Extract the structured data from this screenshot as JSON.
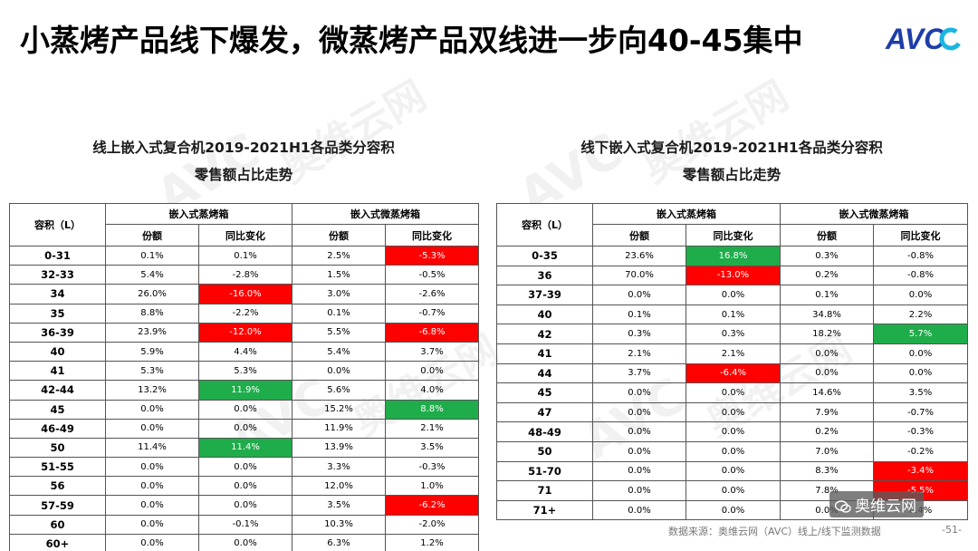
{
  "title": "小蒸烤产品线下爆发，微蒸烤产品双线进一步向40-45集中",
  "logo_text": "AVC",
  "watermark": "奥维云网",
  "watermark_sub": "ALL VIEW CLOUD",
  "footer": {
    "source": "数据来源：奥维云网（AVC）线上/线下监测数据",
    "page": "-51-",
    "wechat": "奥维云网"
  },
  "colors": {
    "negative": "#ff0000",
    "positive": "#1fad4b",
    "logo_blue": "#1d3ea8",
    "logo_cyan": "#1cb5e0"
  },
  "online": {
    "title_line1": "线上嵌入式复合机2019-2021H1各品类分容积",
    "title_line2": "零售额占比走势",
    "header_capacity": "容积（L）",
    "group1": "嵌入式蒸烤箱",
    "group2": "嵌入式微蒸烤箱",
    "sub_share": "份额",
    "sub_yoy": "同比变化",
    "rows": [
      {
        "cat": "0-31",
        "s1": "0.1%",
        "y1": "0.1%",
        "y1c": "",
        "s2": "2.5%",
        "y2": "-5.3%",
        "y2c": "red"
      },
      {
        "cat": "32-33",
        "s1": "5.4%",
        "y1": "-2.8%",
        "y1c": "",
        "s2": "1.5%",
        "y2": "-0.5%",
        "y2c": ""
      },
      {
        "cat": "34",
        "s1": "26.0%",
        "y1": "-16.0%",
        "y1c": "red",
        "s2": "3.0%",
        "y2": "-2.6%",
        "y2c": ""
      },
      {
        "cat": "35",
        "s1": "8.8%",
        "y1": "-2.2%",
        "y1c": "",
        "s2": "0.1%",
        "y2": "-0.7%",
        "y2c": ""
      },
      {
        "cat": "36-39",
        "s1": "23.9%",
        "y1": "-12.0%",
        "y1c": "red",
        "s2": "5.5%",
        "y2": "-6.8%",
        "y2c": "red"
      },
      {
        "cat": "40",
        "s1": "5.9%",
        "y1": "4.4%",
        "y1c": "",
        "s2": "5.4%",
        "y2": "3.7%",
        "y2c": ""
      },
      {
        "cat": "41",
        "s1": "5.3%",
        "y1": "5.3%",
        "y1c": "",
        "s2": "0.0%",
        "y2": "0.0%",
        "y2c": ""
      },
      {
        "cat": "42-44",
        "s1": "13.2%",
        "y1": "11.9%",
        "y1c": "green",
        "s2": "5.6%",
        "y2": "4.0%",
        "y2c": ""
      },
      {
        "cat": "45",
        "s1": "0.0%",
        "y1": "0.0%",
        "y1c": "",
        "s2": "15.2%",
        "y2": "8.8%",
        "y2c": "green"
      },
      {
        "cat": "46-49",
        "s1": "0.0%",
        "y1": "0.0%",
        "y1c": "",
        "s2": "11.9%",
        "y2": "2.1%",
        "y2c": ""
      },
      {
        "cat": "50",
        "s1": "11.4%",
        "y1": "11.4%",
        "y1c": "green",
        "s2": "13.9%",
        "y2": "3.5%",
        "y2c": ""
      },
      {
        "cat": "51-55",
        "s1": "0.0%",
        "y1": "0.0%",
        "y1c": "",
        "s2": "3.3%",
        "y2": "-0.3%",
        "y2c": ""
      },
      {
        "cat": "56",
        "s1": "0.0%",
        "y1": "0.0%",
        "y1c": "",
        "s2": "12.0%",
        "y2": "1.0%",
        "y2c": ""
      },
      {
        "cat": "57-59",
        "s1": "0.0%",
        "y1": "0.0%",
        "y1c": "",
        "s2": "3.5%",
        "y2": "-6.2%",
        "y2c": "red"
      },
      {
        "cat": "60",
        "s1": "0.0%",
        "y1": "-0.1%",
        "y1c": "",
        "s2": "10.3%",
        "y2": "-2.0%",
        "y2c": ""
      },
      {
        "cat": "60+",
        "s1": "0.0%",
        "y1": "0.0%",
        "y1c": "",
        "s2": "6.3%",
        "y2": "1.2%",
        "y2c": ""
      }
    ]
  },
  "offline": {
    "title_line1": "线下嵌入式复合机2019-2021H1各品类分容积",
    "title_line2": "零售额占比走势",
    "header_capacity": "容积（L）",
    "group1": "嵌入式蒸烤箱",
    "group2": "嵌入式微蒸烤箱",
    "sub_share": "份额",
    "sub_yoy": "同比变化",
    "rows": [
      {
        "cat": "0-35",
        "s1": "23.6%",
        "y1": "16.8%",
        "y1c": "green",
        "s2": "0.3%",
        "y2": "-0.8%",
        "y2c": ""
      },
      {
        "cat": "36",
        "s1": "70.0%",
        "y1": "-13.0%",
        "y1c": "red",
        "s2": "0.2%",
        "y2": "-0.8%",
        "y2c": ""
      },
      {
        "cat": "37-39",
        "s1": "0.0%",
        "y1": "0.0%",
        "y1c": "",
        "s2": "0.1%",
        "y2": "0.0%",
        "y2c": ""
      },
      {
        "cat": "40",
        "s1": "0.1%",
        "y1": "0.1%",
        "y1c": "",
        "s2": "34.8%",
        "y2": "2.2%",
        "y2c": ""
      },
      {
        "cat": "42",
        "s1": "0.3%",
        "y1": "0.3%",
        "y1c": "",
        "s2": "18.2%",
        "y2": "5.7%",
        "y2c": "green"
      },
      {
        "cat": "41",
        "s1": "2.1%",
        "y1": "2.1%",
        "y1c": "",
        "s2": "0.0%",
        "y2": "0.0%",
        "y2c": ""
      },
      {
        "cat": "44",
        "s1": "3.7%",
        "y1": "-6.4%",
        "y1c": "red",
        "s2": "0.0%",
        "y2": "0.0%",
        "y2c": ""
      },
      {
        "cat": "45",
        "s1": "0.0%",
        "y1": "0.0%",
        "y1c": "",
        "s2": "14.6%",
        "y2": "3.5%",
        "y2c": ""
      },
      {
        "cat": "47",
        "s1": "0.0%",
        "y1": "0.0%",
        "y1c": "",
        "s2": "7.9%",
        "y2": "-0.7%",
        "y2c": ""
      },
      {
        "cat": "48-49",
        "s1": "0.0%",
        "y1": "0.0%",
        "y1c": "",
        "s2": "0.2%",
        "y2": "-0.3%",
        "y2c": ""
      },
      {
        "cat": "50",
        "s1": "0.0%",
        "y1": "0.0%",
        "y1c": "",
        "s2": "7.0%",
        "y2": "-0.2%",
        "y2c": ""
      },
      {
        "cat": "51-70",
        "s1": "0.0%",
        "y1": "0.0%",
        "y1c": "",
        "s2": "8.3%",
        "y2": "-3.4%",
        "y2c": "red"
      },
      {
        "cat": "71",
        "s1": "0.0%",
        "y1": "0.0%",
        "y1c": "",
        "s2": "7.8%",
        "y2": "-5.5%",
        "y2c": "red"
      },
      {
        "cat": "71+",
        "s1": "0.0%",
        "y1": "0.0%",
        "y1c": "",
        "s2": "0.0%",
        "y2": "0.4%",
        "y2c": ""
      }
    ]
  }
}
